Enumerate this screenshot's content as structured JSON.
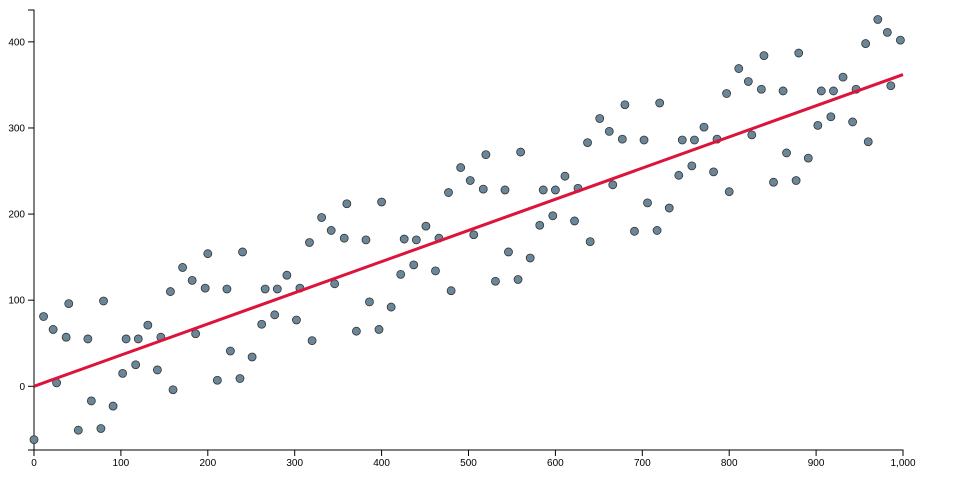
{
  "chart_data": {
    "type": "scatter",
    "x": [
      0,
      11,
      22,
      26,
      37,
      40,
      51,
      62,
      66,
      77,
      80,
      91,
      102,
      106,
      117,
      120,
      131,
      142,
      146,
      157,
      160,
      171,
      182,
      186,
      197,
      200,
      211,
      222,
      226,
      237,
      240,
      251,
      262,
      266,
      277,
      280,
      291,
      302,
      306,
      317,
      320,
      331,
      342,
      346,
      357,
      360,
      371,
      382,
      386,
      397,
      400,
      411,
      422,
      426,
      437,
      440,
      451,
      462,
      466,
      477,
      480,
      491,
      502,
      506,
      517,
      520,
      531,
      542,
      546,
      557,
      560,
      571,
      582,
      586,
      597,
      600,
      611,
      622,
      626,
      637,
      640,
      651,
      662,
      666,
      677,
      680,
      691,
      702,
      706,
      717,
      720,
      731,
      742,
      746,
      757,
      760,
      771,
      782,
      786,
      797,
      800,
      811,
      822,
      826,
      837,
      840,
      851,
      862,
      866,
      877,
      880,
      891,
      902,
      906,
      917,
      920,
      931,
      942,
      946,
      957,
      960,
      971,
      982,
      986,
      997
    ],
    "values": [
      -62,
      81,
      66,
      4,
      57,
      96,
      -51,
      55,
      -17,
      -49,
      99,
      -23,
      15,
      55,
      25,
      55,
      71,
      19,
      57,
      110,
      -4,
      138,
      123,
      61,
      114,
      154,
      7,
      113,
      41,
      9,
      156,
      34,
      72,
      113,
      83,
      113,
      129,
      77,
      114,
      167,
      53,
      196,
      181,
      119,
      172,
      212,
      64,
      170,
      98,
      66,
      214,
      92,
      130,
      171,
      141,
      170,
      186,
      134,
      172,
      225,
      111,
      254,
      239,
      176,
      229,
      269,
      122,
      228,
      156,
      124,
      272,
      149,
      187,
      228,
      198,
      228,
      244,
      192,
      230,
      283,
      168,
      311,
      296,
      234,
      287,
      327,
      180,
      286,
      213,
      181,
      329,
      207,
      245,
      286,
      256,
      286,
      301,
      249,
      287,
      340,
      226,
      369,
      354,
      292,
      345,
      384,
      237,
      343,
      271,
      239,
      387,
      265,
      303,
      343,
      313,
      343,
      359,
      307,
      345,
      398,
      284,
      426,
      411,
      349,
      402
    ],
    "color": "#6a8799",
    "line": {
      "x": [
        0,
        1000
      ],
      "y": [
        0,
        362
      ],
      "color": "#dc143c"
    },
    "xlim": [
      0,
      1000
    ],
    "xticks": [
      0,
      100,
      200,
      300,
      400,
      500,
      600,
      700,
      800,
      900,
      {
        "value": 1000,
        "label": "1,000"
      }
    ],
    "ylim": [
      -74,
      437
    ],
    "yticks": [
      0,
      100,
      200,
      300,
      400
    ],
    "grid": false
  }
}
